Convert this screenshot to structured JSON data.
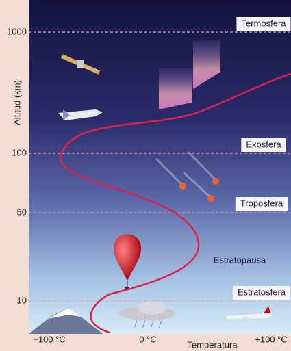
{
  "y_axis": {
    "title": "Altitud (km)",
    "ticks": [
      "1000",
      "100",
      "50",
      "10"
    ]
  },
  "x_axis": {
    "title": "Temperatura",
    "ticks": [
      "−100 °C",
      "0 °C",
      "+100 °C"
    ]
  },
  "layers": [
    {
      "label": "Termosfera",
      "boxed": true
    },
    {
      "label": "Exosfera",
      "boxed": true
    },
    {
      "label": "Troposfera",
      "boxed": true
    },
    {
      "label": "Estratopausa",
      "boxed": false
    },
    {
      "label": "Estratosfera",
      "boxed": true
    }
  ]
}
